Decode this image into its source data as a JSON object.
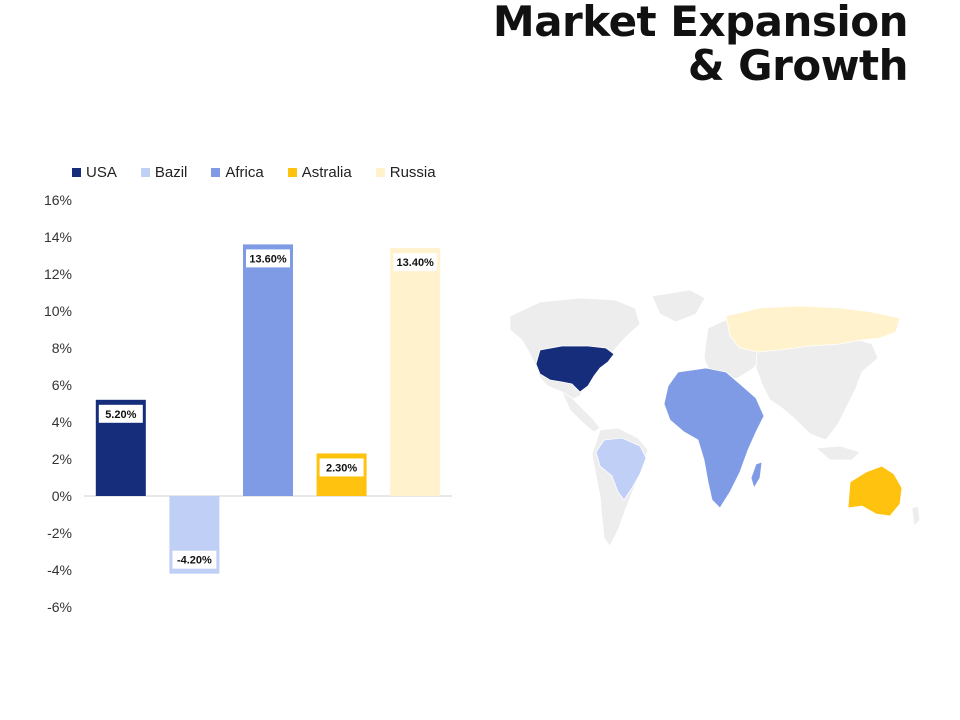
{
  "page": {
    "title_line1": "Market Expansion",
    "title_line2": "& Growth"
  },
  "chart_data": {
    "type": "bar",
    "categories": [
      "USA",
      "Bazil",
      "Africa",
      "Astralia",
      "Russia"
    ],
    "values": [
      5.2,
      -4.2,
      13.6,
      2.3,
      13.4
    ],
    "data_labels": [
      "5.20%",
      "-4.20%",
      "13.60%",
      "2.30%",
      "13.40%"
    ],
    "colors": [
      "#152d7a",
      "#c0cff5",
      "#7f9be6",
      "#ffc20e",
      "#fff2cc"
    ],
    "ylim": [
      -6,
      16
    ],
    "yticks": [
      16,
      14,
      12,
      10,
      8,
      6,
      4,
      2,
      0,
      -2,
      -4,
      -6
    ],
    "ytick_labels": [
      "16%",
      "14%",
      "12%",
      "10%",
      "8%",
      "6%",
      "4%",
      "2%",
      "0%",
      "-2%",
      "-4%",
      "-6%"
    ],
    "legend": [
      "USA",
      "Bazil",
      "Africa",
      "Astralia",
      "Russia"
    ],
    "legend_position": "top",
    "grid": false,
    "title": "",
    "xlabel": "",
    "ylabel": ""
  },
  "map": {
    "base_color": "#ededed",
    "highlights": {
      "usa": "#152d7a",
      "brazil": "#c0cff5",
      "africa": "#7f9be6",
      "australia": "#ffc20e",
      "russia": "#fff2cc"
    }
  }
}
